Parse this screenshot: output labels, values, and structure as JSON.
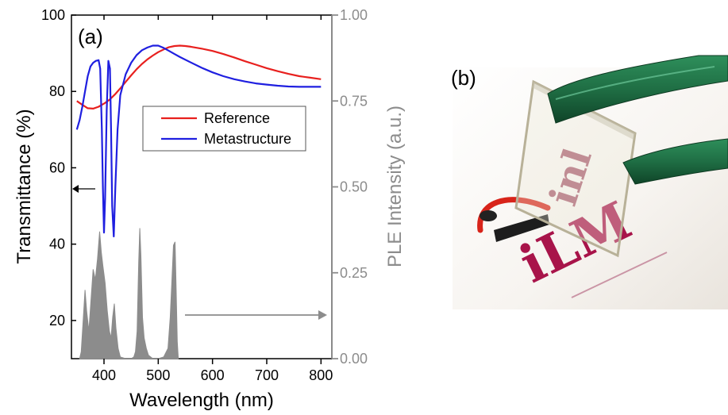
{
  "panel_a_label": "(a)",
  "panel_b_label": "(b)",
  "chart_data": {
    "type": "line",
    "xlabel": "Wavelength (nm)",
    "ylabel": "Transmittance (%)",
    "y2label": "PLE Intensity (a.u.)",
    "xlim": [
      340,
      820
    ],
    "ylim": [
      10,
      100
    ],
    "y2lim": [
      0,
      1
    ],
    "xticks": [
      400,
      500,
      600,
      700,
      800
    ],
    "yticks": [
      20,
      40,
      60,
      80,
      100
    ],
    "y2ticks": [
      "0.00",
      "0.25",
      "0.50",
      "0.75",
      "1.00"
    ],
    "legend_position": "upper-right",
    "grid": false,
    "colors": {
      "reference": "#e8201e",
      "metastructure": "#1f1fe0",
      "ple": "#8c8c8c"
    },
    "series": [
      {
        "name": "Reference",
        "axis": "left",
        "x": [
          350,
          360,
          370,
          380,
          390,
          400,
          410,
          420,
          430,
          440,
          450,
          460,
          470,
          480,
          490,
          500,
          510,
          520,
          530,
          540,
          550,
          560,
          580,
          600,
          620,
          640,
          660,
          680,
          700,
          720,
          740,
          760,
          780,
          800
        ],
        "y": [
          77.5,
          76.5,
          75.6,
          75.5,
          76.0,
          76.8,
          77.8,
          79.2,
          80.8,
          82.5,
          84.2,
          85.8,
          87.2,
          88.4,
          89.4,
          90.3,
          91.0,
          91.6,
          91.9,
          92.0,
          91.9,
          91.7,
          91.2,
          90.6,
          89.8,
          88.9,
          87.9,
          87.0,
          86.1,
          85.3,
          84.6,
          84.0,
          83.6,
          83.2
        ]
      },
      {
        "name": "Metastructure",
        "axis": "left",
        "x": [
          350,
          355,
          360,
          365,
          370,
          375,
          380,
          385,
          390,
          393,
          396,
          398,
          400,
          402,
          405,
          408,
          411,
          413,
          415,
          418,
          421,
          425,
          430,
          440,
          450,
          460,
          470,
          480,
          490,
          500,
          510,
          520,
          530,
          540,
          560,
          580,
          600,
          620,
          640,
          660,
          680,
          700,
          720,
          740,
          760,
          780,
          800
        ],
        "y": [
          70,
          72.5,
          76,
          80,
          84,
          86.5,
          87.5,
          88,
          88.2,
          86,
          70,
          55,
          43,
          52,
          75,
          88,
          86,
          70,
          50,
          42,
          55,
          70,
          79,
          84.5,
          87.5,
          89.5,
          90.8,
          91.5,
          92.0,
          92.0,
          91.4,
          90.6,
          89.8,
          89.0,
          87.6,
          86.2,
          85.0,
          84.0,
          83.2,
          82.6,
          82.1,
          81.8,
          81.5,
          81.3,
          81.2,
          81.2,
          81.2
        ]
      },
      {
        "name": "PLE",
        "axis": "right",
        "type": "area",
        "x": [
          355,
          358,
          362,
          365,
          368,
          372,
          376,
          380,
          384,
          388,
          392,
          395,
          398,
          402,
          406,
          410,
          413,
          416,
          419,
          422,
          426,
          430,
          440,
          450,
          455,
          458,
          461,
          464,
          466,
          468,
          471,
          474,
          478,
          482,
          490,
          500,
          510,
          518,
          522,
          525,
          528,
          531,
          533,
          535,
          537
        ],
        "y": [
          0.0,
          0.02,
          0.12,
          0.2,
          0.14,
          0.08,
          0.17,
          0.26,
          0.23,
          0.29,
          0.37,
          0.31,
          0.27,
          0.22,
          0.14,
          0.08,
          0.06,
          0.12,
          0.16,
          0.09,
          0.03,
          0.005,
          0.0,
          0.0,
          0.005,
          0.02,
          0.08,
          0.28,
          0.38,
          0.3,
          0.12,
          0.06,
          0.03,
          0.01,
          0.0,
          0.0,
          0.005,
          0.03,
          0.12,
          0.22,
          0.33,
          0.34,
          0.2,
          0.05,
          0.0
        ]
      }
    ]
  }
}
